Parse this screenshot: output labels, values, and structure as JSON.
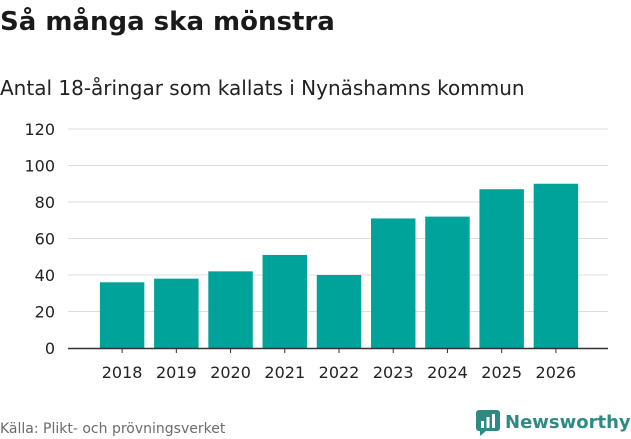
{
  "title": "Så många ska mönstra",
  "subtitle": "Antal 18-åringar som kallats i Nynäshamns kommun",
  "footer": {
    "source": "Källa: Plikt- och prövningsverket",
    "brand": "Newsworthy"
  },
  "colors": {
    "bar": "#00a39a",
    "grid": "#dddddd",
    "axis": "#333333",
    "text": "#222222",
    "brand": "#2e8b83"
  },
  "chart_data": {
    "type": "bar",
    "title": "Så många ska mönstra",
    "subtitle": "Antal 18-åringar som kallats i Nynäshamns kommun",
    "xlabel": "",
    "ylabel": "",
    "categories": [
      "2018",
      "2019",
      "2020",
      "2021",
      "2022",
      "2023",
      "2024",
      "2025",
      "2026"
    ],
    "values": [
      36,
      38,
      42,
      51,
      40,
      71,
      72,
      87,
      90
    ],
    "ylim": [
      0,
      120
    ],
    "yticks": [
      0,
      20,
      40,
      60,
      80,
      100,
      120
    ],
    "grid": true,
    "legend": "none"
  }
}
